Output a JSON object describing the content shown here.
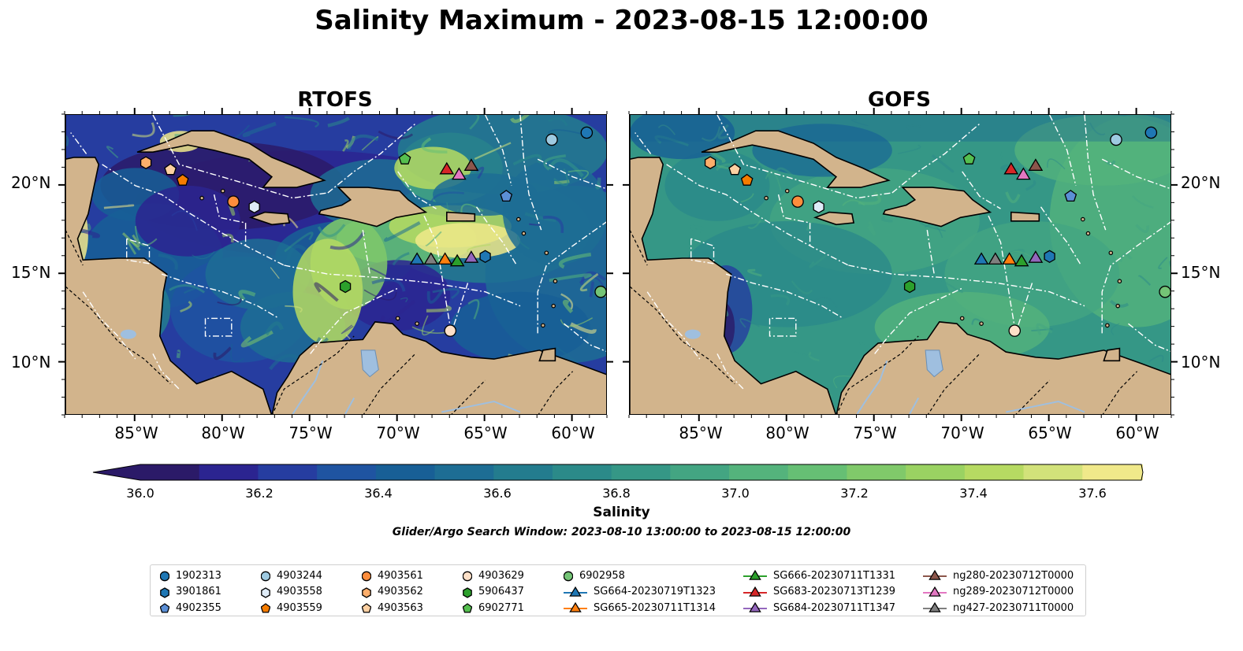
{
  "title": "Salinity Maximum - 2023-08-15 12:00:00",
  "panels": [
    {
      "title": "RTOFS",
      "map_style": "rtofs"
    },
    {
      "title": "GOFS",
      "map_style": "gofs"
    }
  ],
  "map": {
    "lon_range": [
      -89,
      -58
    ],
    "lat_range": [
      7,
      24
    ],
    "lat_ticks": [
      {
        "value": 20,
        "label": "20°N"
      },
      {
        "value": 15,
        "label": "15°N"
      },
      {
        "value": 10,
        "label": "10°N"
      }
    ],
    "lon_ticks": [
      {
        "value": -85,
        "label": "85°W"
      },
      {
        "value": -80,
        "label": "80°W"
      },
      {
        "value": -75,
        "label": "75°W"
      },
      {
        "value": -70,
        "label": "70°W"
      },
      {
        "value": -65,
        "label": "65°W"
      },
      {
        "value": -60,
        "label": "60°W"
      }
    ],
    "land_color": "#d2b48c",
    "lake_color": "#9fbfdf",
    "boundary_color": "#ffffff"
  },
  "colorbar": {
    "label": "Salinity",
    "range": [
      36.0,
      37.7
    ],
    "step": 0.1,
    "extend": "both",
    "tick_labels": [
      "36.0",
      "36.2",
      "36.4",
      "36.6",
      "36.8",
      "37.0",
      "37.2",
      "37.4",
      "37.6"
    ],
    "colors": [
      "#2b1a68",
      "#2b2490",
      "#263da0",
      "#1f54a1",
      "#185f96",
      "#1d6d94",
      "#237c8e",
      "#2b8a89",
      "#359786",
      "#43a582",
      "#54b37c",
      "#66bf74",
      "#80c96a",
      "#9ad262",
      "#b6da62",
      "#d2e27a",
      "#f0e98a"
    ]
  },
  "search_window": "Glider/Argo Search Window: 2023-08-10 13:00:00 to 2023-08-15 12:00:00",
  "platforms": [
    {
      "id": "1902313",
      "marker": "circle",
      "color": "#1f77b4",
      "lon": -59.2,
      "lat": 23.0
    },
    {
      "id": "3901861",
      "marker": "hexagon",
      "color": "#1f77b4",
      "lon": -65.0,
      "lat": 16.0
    },
    {
      "id": "4902355",
      "marker": "pentagon",
      "color": "#5b8fd6",
      "lon": -63.8,
      "lat": 19.4
    },
    {
      "id": "4903244",
      "marker": "circle",
      "color": "#9ecae1",
      "lon": -61.2,
      "lat": 22.6
    },
    {
      "id": "4903558",
      "marker": "hexagon",
      "color": "#deebf7",
      "lon": -78.2,
      "lat": 18.8
    },
    {
      "id": "4903559",
      "marker": "pentagon",
      "color": "#f57c00",
      "lon": -82.3,
      "lat": 20.3
    },
    {
      "id": "4903561",
      "marker": "circle",
      "color": "#fd8d3c",
      "lon": -79.4,
      "lat": 19.1
    },
    {
      "id": "4903562",
      "marker": "hexagon",
      "color": "#fdae6b",
      "lon": -84.4,
      "lat": 21.3
    },
    {
      "id": "4903563",
      "marker": "pentagon",
      "color": "#fdd0a2",
      "lon": -83.0,
      "lat": 20.9
    },
    {
      "id": "4903629",
      "marker": "circle",
      "color": "#fde0c8",
      "lon": -67.0,
      "lat": 11.8
    },
    {
      "id": "5906437",
      "marker": "hexagon",
      "color": "#2ca02c",
      "lon": -73.0,
      "lat": 14.3
    },
    {
      "id": "6902771",
      "marker": "pentagon",
      "color": "#55bf4f",
      "lon": -69.6,
      "lat": 21.5
    },
    {
      "id": "6902958",
      "marker": "circle",
      "color": "#74c476",
      "lon": -58.4,
      "lat": 14.0
    },
    {
      "id": "SG664-20230719T1323",
      "marker": "triangle",
      "color": "#1f77b4",
      "lon": -68.9,
      "lat": 15.8,
      "line": true
    },
    {
      "id": "SG665-20230711T1314",
      "marker": "triangle",
      "color": "#ff7f0e",
      "lon": -67.3,
      "lat": 15.8,
      "line": true
    },
    {
      "id": "SG666-20230711T1331",
      "marker": "triangle",
      "color": "#2ca02c",
      "lon": -66.6,
      "lat": 15.7,
      "line": true
    },
    {
      "id": "SG683-20230713T1239",
      "marker": "triangle",
      "color": "#d62728",
      "lon": -67.2,
      "lat": 20.9,
      "line": true
    },
    {
      "id": "SG684-20230711T1347",
      "marker": "triangle",
      "color": "#9467bd",
      "lon": -65.8,
      "lat": 15.9,
      "line": true
    },
    {
      "id": "ng280-20230712T0000",
      "marker": "triangle",
      "color": "#8c564b",
      "lon": -65.8,
      "lat": 21.1,
      "line": true
    },
    {
      "id": "ng289-20230712T0000",
      "marker": "triangle",
      "color": "#e377c2",
      "lon": -66.5,
      "lat": 20.6,
      "line": true
    },
    {
      "id": "ng427-20230711T0000",
      "marker": "triangle",
      "color": "#7f7f7f",
      "lon": -68.1,
      "lat": 15.8,
      "line": true
    }
  ]
}
